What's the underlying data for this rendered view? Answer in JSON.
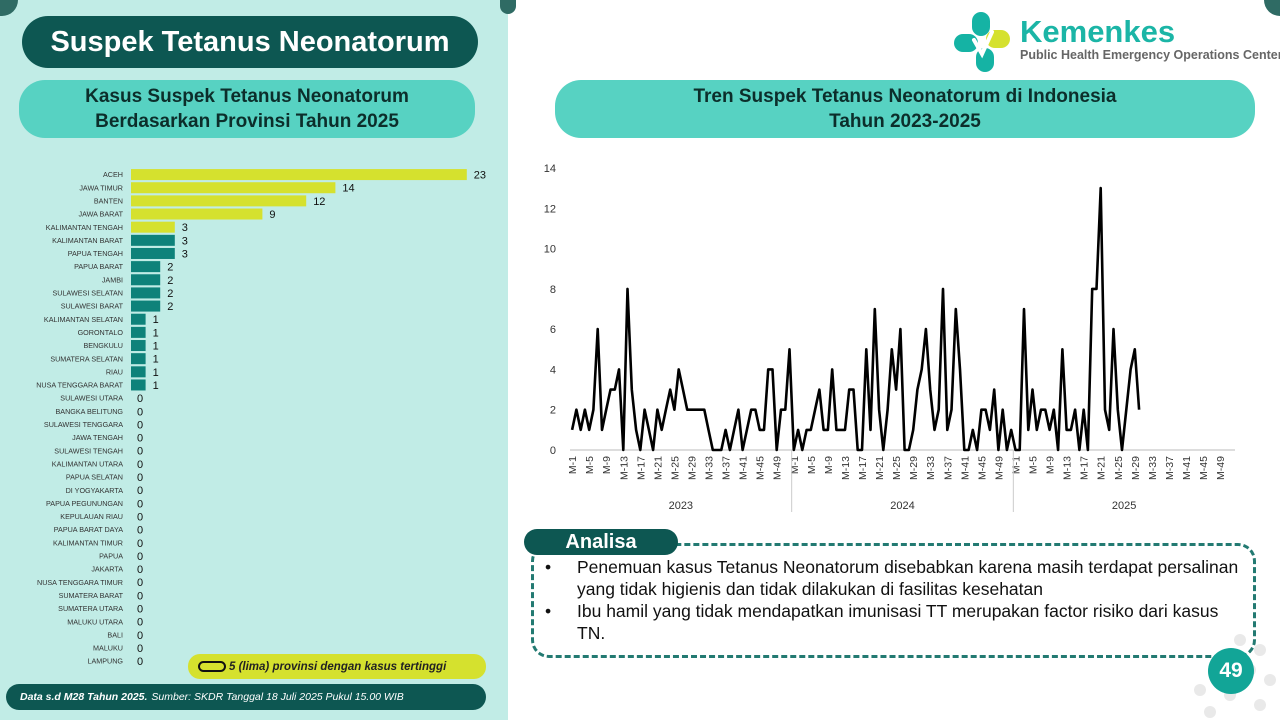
{
  "header": {
    "title": "Suspek Tetanus Neonatorum",
    "logo_name": "Kemenkes",
    "logo_subtitle": "Public Health Emergency Operations Center"
  },
  "colors": {
    "highlight": "#d5e12e",
    "regular": "#0e827a",
    "line": "#000000",
    "dark_teal": "#0d5752",
    "pill_teal": "#57d2c2"
  },
  "chart_data": [
    {
      "type": "bar",
      "orientation": "horizontal",
      "title_lines": [
        "Kasus Suspek Tetanus Neonatorum",
        "Berdasarkan Provinsi Tahun 2025"
      ],
      "categories": [
        "ACEH",
        "JAWA TIMUR",
        "BANTEN",
        "JAWA BARAT",
        "KALIMANTAN TENGAH",
        "KALIMANTAN BARAT",
        "PAPUA TENGAH",
        "PAPUA BARAT",
        "JAMBI",
        "SULAWESI SELATAN",
        "SULAWESI BARAT",
        "KALIMANTAN SELATAN",
        "GORONTALO",
        "BENGKULU",
        "SUMATERA SELATAN",
        "RIAU",
        "NUSA TENGGARA BARAT",
        "SULAWESI UTARA",
        "BANGKA BELITUNG",
        "SULAWESI TENGGARA",
        "JAWA TENGAH",
        "SULAWESI TENGAH",
        "KALIMANTAN UTARA",
        "PAPUA SELATAN",
        "DI YOGYAKARTA",
        "PAPUA PEGUNUNGAN",
        "KEPULAUAN RIAU",
        "PAPUA BARAT DAYA",
        "KALIMANTAN TIMUR",
        "PAPUA",
        "JAKARTA",
        "NUSA TENGGARA TIMUR",
        "SUMATERA BARAT",
        "SUMATERA UTARA",
        "MALUKU UTARA",
        "BALI",
        "MALUKU",
        "LAMPUNG"
      ],
      "values": [
        23,
        14,
        12,
        9,
        3,
        3,
        3,
        2,
        2,
        2,
        2,
        1,
        1,
        1,
        1,
        1,
        1,
        0,
        0,
        0,
        0,
        0,
        0,
        0,
        0,
        0,
        0,
        0,
        0,
        0,
        0,
        0,
        0,
        0,
        0,
        0,
        0,
        0
      ],
      "highlighted": [
        true,
        true,
        true,
        true,
        true,
        false,
        false,
        false,
        false,
        false,
        false,
        false,
        false,
        false,
        false,
        false,
        false,
        false,
        false,
        false,
        false,
        false,
        false,
        false,
        false,
        false,
        false,
        false,
        false,
        false,
        false,
        false,
        false,
        false,
        false,
        false,
        false,
        false
      ],
      "legend": "5 (lima) provinsi dengan kasus tertinggi"
    },
    {
      "type": "line",
      "title_lines": [
        "Tren Suspek Tetanus Neonatorum di Indonesia",
        "Tahun 2023-2025"
      ],
      "ylim": [
        0,
        14
      ],
      "yticks": [
        0,
        2,
        4,
        6,
        8,
        10,
        12,
        14
      ],
      "groups": [
        {
          "label": "2023",
          "weeks": 52,
          "tick_labels": [
            "M-1",
            "M-5",
            "M-9",
            "M-13",
            "M-17",
            "M-21",
            "M-25",
            "M-29",
            "M-33",
            "M-37",
            "M-41",
            "M-45",
            "M-49"
          ]
        },
        {
          "label": "2024",
          "weeks": 52,
          "tick_labels": [
            "M-1",
            "M-5",
            "M-9",
            "M-13",
            "M-17",
            "M-21",
            "M-25",
            "M-29",
            "M-33",
            "M-37",
            "M-41",
            "M-45",
            "M-49"
          ]
        },
        {
          "label": "2025",
          "weeks": 52,
          "tick_labels": [
            "M-1",
            "M-5",
            "M-9",
            "M-13",
            "M-17",
            "M-21",
            "M-25",
            "M-29",
            "M-33",
            "M-37",
            "M-41",
            "M-45",
            "M-49"
          ]
        }
      ],
      "series": [
        {
          "values": [
            1,
            2,
            1,
            2,
            1,
            2,
            6,
            1,
            2,
            3,
            3,
            4,
            0,
            8,
            3,
            1,
            0,
            2,
            1,
            0,
            2,
            1,
            2,
            3,
            2,
            4,
            3,
            2,
            2,
            2,
            2,
            2,
            1,
            0,
            0,
            0,
            1,
            0,
            1,
            2,
            0,
            1,
            2,
            2,
            1,
            1,
            4,
            4,
            0,
            2,
            2,
            5,
            0,
            1,
            0,
            1,
            1,
            2,
            3,
            1,
            1,
            4,
            1,
            1,
            1,
            3,
            3,
            0,
            0,
            5,
            1,
            7,
            2,
            0,
            2,
            5,
            3,
            6,
            0,
            0,
            1,
            3,
            4,
            6,
            3,
            1,
            2,
            8,
            1,
            2,
            7,
            4,
            0,
            0,
            1,
            0,
            2,
            2,
            1,
            3,
            0,
            2,
            0,
            1,
            0,
            0,
            7,
            1,
            3,
            1,
            2,
            2,
            1,
            2,
            0,
            5,
            1,
            1,
            2,
            0,
            2,
            0,
            8,
            8,
            13,
            2,
            1,
            6,
            2,
            0,
            2,
            4,
            5,
            2
          ]
        }
      ]
    }
  ],
  "footer": {
    "bold": "Data s.d M28 Tahun 2025.",
    "rest": "Sumber: SKDR Tanggal 18 Juli 2025 Pukul 15.00 WIB"
  },
  "analysis": {
    "label": "Analisa",
    "items": [
      "Penemuan kasus Tetanus Neonatorum disebabkan karena masih terdapat persalinan yang tidak higienis dan tidak dilakukan di fasilitas kesehatan",
      "Ibu hamil yang tidak mendapatkan imunisasi TT merupakan factor risiko dari kasus TN."
    ]
  },
  "page_number": "49"
}
